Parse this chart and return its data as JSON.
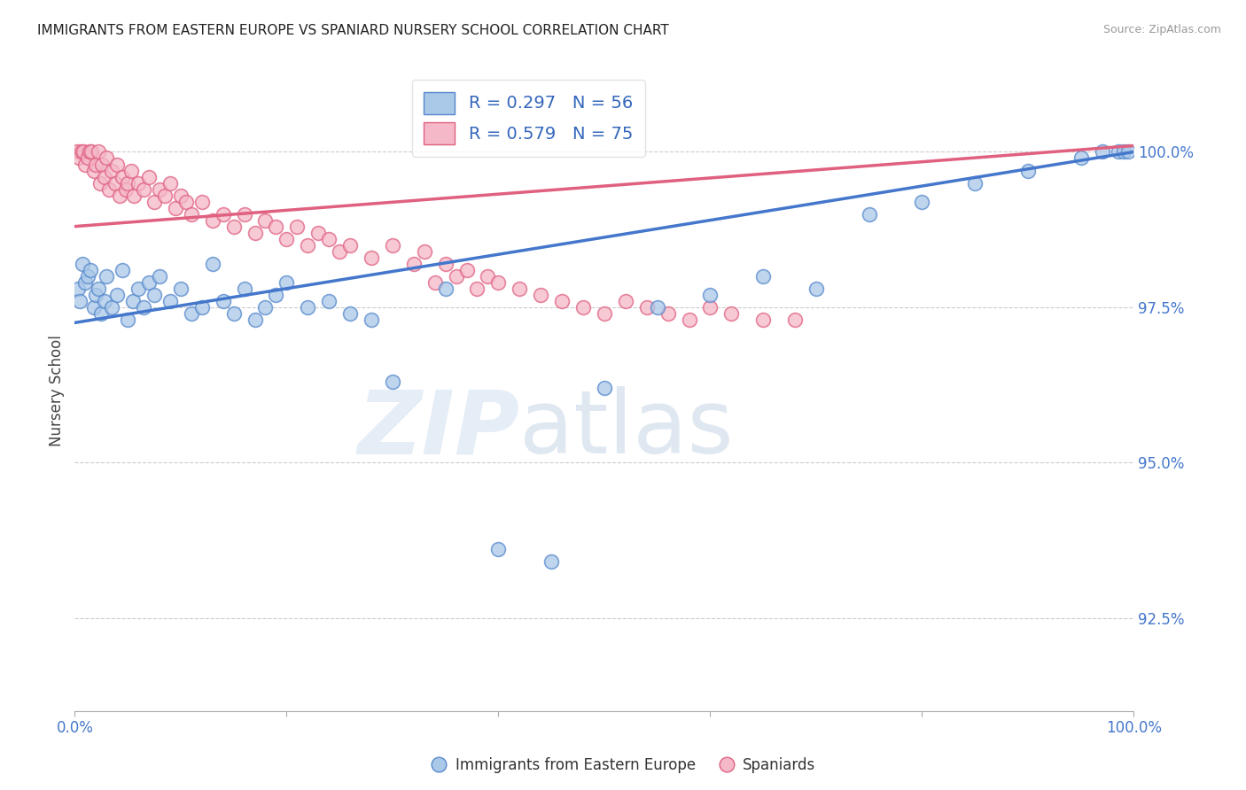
{
  "title": "IMMIGRANTS FROM EASTERN EUROPE VS SPANIARD NURSERY SCHOOL CORRELATION CHART",
  "source": "Source: ZipAtlas.com",
  "ylabel": "Nursery School",
  "watermark_zip": "ZIP",
  "watermark_atlas": "atlas",
  "blue_color": "#aac8e8",
  "pink_color": "#f4b8c8",
  "blue_edge_color": "#5588cc",
  "pink_edge_color": "#e06080",
  "blue_line_color": "#4477cc",
  "pink_line_color": "#e06080",
  "blue_r": 0.297,
  "blue_n": 56,
  "pink_r": 0.579,
  "pink_n": 75,
  "legend_blue_series": "Immigrants from Eastern Europe",
  "legend_pink_series": "Spaniards",
  "xmin": 0.0,
  "xmax": 100.0,
  "ymin": 91.0,
  "ymax": 101.3,
  "ytick_right": [
    100.0,
    97.5,
    95.0,
    92.5
  ],
  "ytick_labels_right": [
    "100.0%",
    "97.5%",
    "95.0%",
    "92.5%"
  ],
  "blue_line_x0": 0.0,
  "blue_line_y0": 97.25,
  "blue_line_x1": 100.0,
  "blue_line_y1": 100.0,
  "pink_line_x0": 0.0,
  "pink_line_y0": 98.8,
  "pink_line_x1": 100.0,
  "pink_line_y1": 100.1,
  "blue_x": [
    0.3,
    0.5,
    0.7,
    1.0,
    1.2,
    1.5,
    1.8,
    2.0,
    2.2,
    2.5,
    2.8,
    3.0,
    3.5,
    4.0,
    4.5,
    5.0,
    5.5,
    6.0,
    6.5,
    7.0,
    7.5,
    8.0,
    9.0,
    10.0,
    11.0,
    12.0,
    13.0,
    14.0,
    15.0,
    16.0,
    17.0,
    18.0,
    19.0,
    20.0,
    22.0,
    24.0,
    26.0,
    28.0,
    30.0,
    35.0,
    40.0,
    45.0,
    50.0,
    55.0,
    60.0,
    65.0,
    70.0,
    75.0,
    80.0,
    85.0,
    90.0,
    95.0,
    97.0,
    98.5,
    99.0,
    99.5
  ],
  "blue_y": [
    97.8,
    97.6,
    98.2,
    97.9,
    98.0,
    98.1,
    97.5,
    97.7,
    97.8,
    97.4,
    97.6,
    98.0,
    97.5,
    97.7,
    98.1,
    97.3,
    97.6,
    97.8,
    97.5,
    97.9,
    97.7,
    98.0,
    97.6,
    97.8,
    97.4,
    97.5,
    98.2,
    97.6,
    97.4,
    97.8,
    97.3,
    97.5,
    97.7,
    97.9,
    97.5,
    97.6,
    97.4,
    97.3,
    96.3,
    97.8,
    93.6,
    93.4,
    96.2,
    97.5,
    97.7,
    98.0,
    97.8,
    99.0,
    99.2,
    99.5,
    99.7,
    99.9,
    100.0,
    100.0,
    100.0,
    100.0
  ],
  "pink_x": [
    0.2,
    0.4,
    0.6,
    0.8,
    1.0,
    1.2,
    1.4,
    1.6,
    1.8,
    2.0,
    2.2,
    2.4,
    2.6,
    2.8,
    3.0,
    3.2,
    3.5,
    3.8,
    4.0,
    4.2,
    4.5,
    4.8,
    5.0,
    5.3,
    5.6,
    6.0,
    6.5,
    7.0,
    7.5,
    8.0,
    8.5,
    9.0,
    9.5,
    10.0,
    10.5,
    11.0,
    12.0,
    13.0,
    14.0,
    15.0,
    16.0,
    17.0,
    18.0,
    19.0,
    20.0,
    21.0,
    22.0,
    23.0,
    24.0,
    25.0,
    26.0,
    28.0,
    30.0,
    32.0,
    33.0,
    34.0,
    35.0,
    36.0,
    37.0,
    38.0,
    39.0,
    40.0,
    42.0,
    44.0,
    46.0,
    48.0,
    50.0,
    52.0,
    54.0,
    56.0,
    58.0,
    60.0,
    62.0,
    65.0,
    68.0
  ],
  "pink_y": [
    100.0,
    99.9,
    100.0,
    100.0,
    99.8,
    99.9,
    100.0,
    100.0,
    99.7,
    99.8,
    100.0,
    99.5,
    99.8,
    99.6,
    99.9,
    99.4,
    99.7,
    99.5,
    99.8,
    99.3,
    99.6,
    99.4,
    99.5,
    99.7,
    99.3,
    99.5,
    99.4,
    99.6,
    99.2,
    99.4,
    99.3,
    99.5,
    99.1,
    99.3,
    99.2,
    99.0,
    99.2,
    98.9,
    99.0,
    98.8,
    99.0,
    98.7,
    98.9,
    98.8,
    98.6,
    98.8,
    98.5,
    98.7,
    98.6,
    98.4,
    98.5,
    98.3,
    98.5,
    98.2,
    98.4,
    97.9,
    98.2,
    98.0,
    98.1,
    97.8,
    98.0,
    97.9,
    97.8,
    97.7,
    97.6,
    97.5,
    97.4,
    97.6,
    97.5,
    97.4,
    97.3,
    97.5,
    97.4,
    97.3,
    97.3
  ]
}
